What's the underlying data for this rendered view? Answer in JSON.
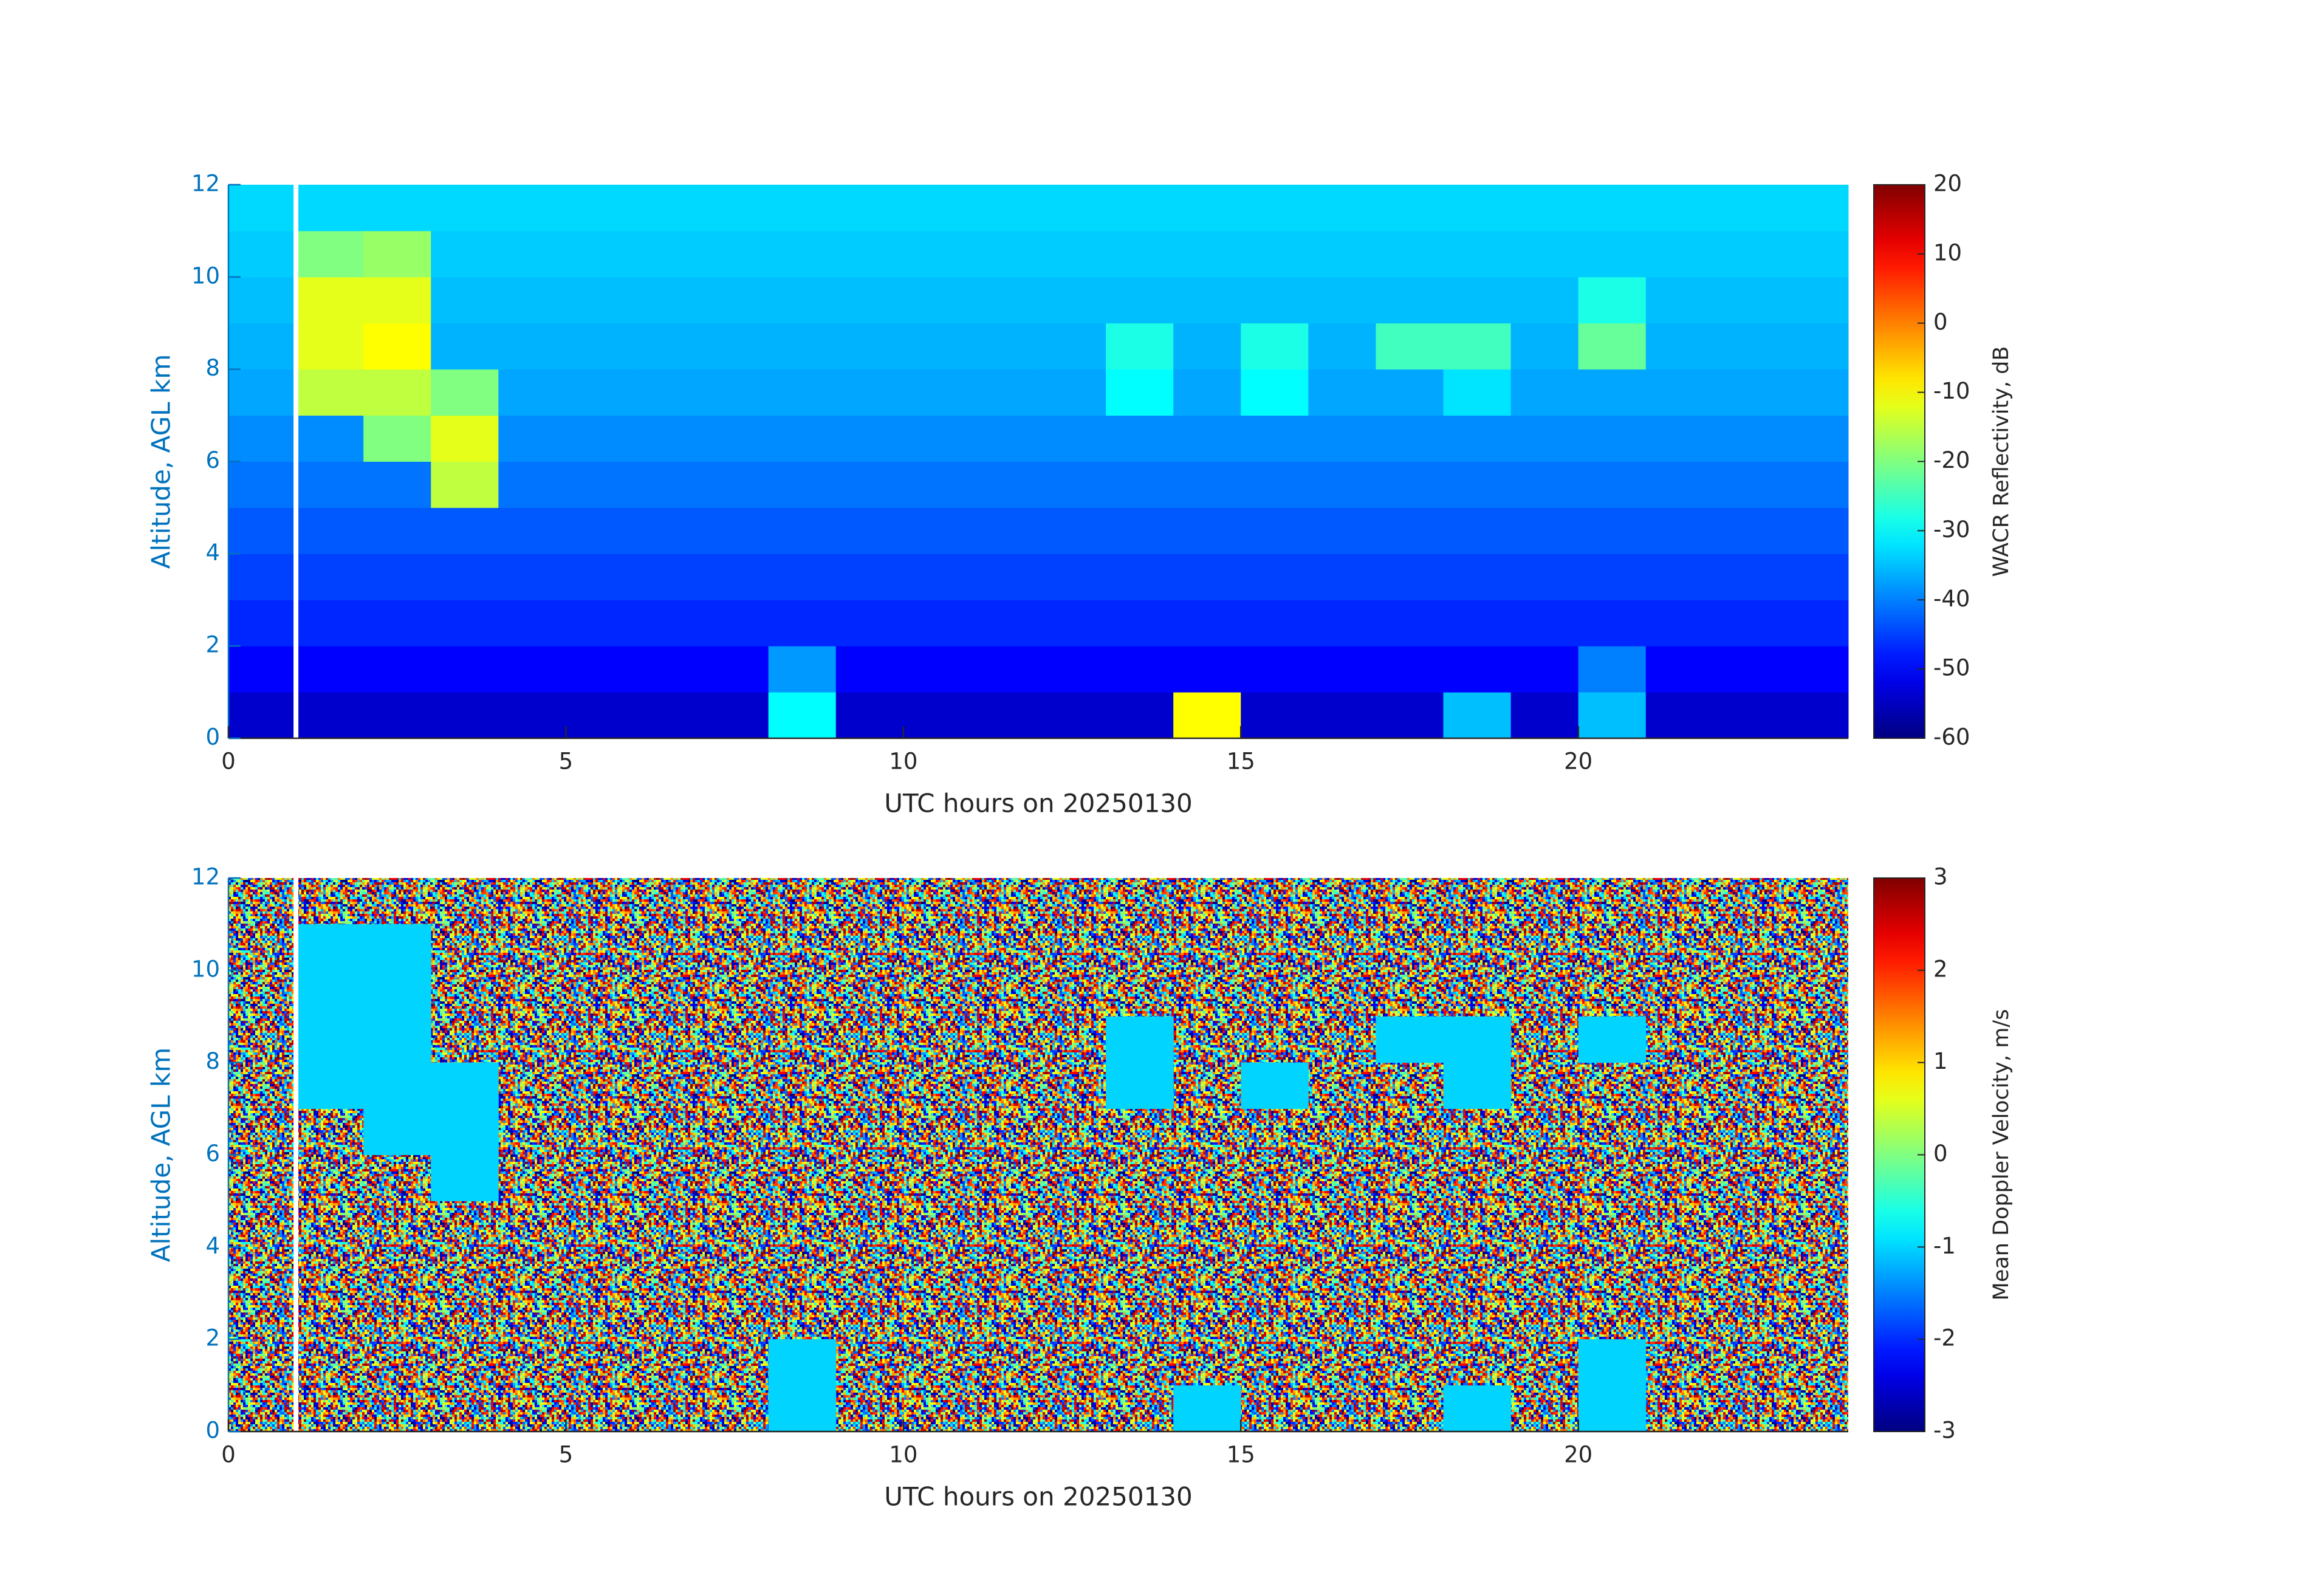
{
  "chart_data": [
    {
      "type": "heatmap",
      "xlabel": "UTC hours on 20250130",
      "ylabel": "Altitude, AGL km",
      "xlim": [
        0,
        24
      ],
      "xticks": [
        0,
        5,
        10,
        15,
        20
      ],
      "ylim": [
        0,
        12
      ],
      "yticks": [
        0,
        2,
        4,
        6,
        8,
        10,
        12
      ],
      "xbins": [
        0,
        1,
        2,
        3,
        4,
        5,
        6,
        7,
        8,
        9,
        10,
        11,
        12,
        13,
        14,
        15,
        16,
        17,
        18,
        19,
        20,
        21,
        22,
        23,
        24
      ],
      "ybins": [
        0,
        1,
        2,
        3,
        4,
        5,
        6,
        7,
        8,
        9,
        10,
        11,
        12
      ],
      "colorbar_label": "WACR Reflectivity, dB",
      "clim": [
        -60,
        20
      ],
      "cticks": [
        -60,
        -50,
        -40,
        -30,
        -20,
        -10,
        0,
        10,
        20
      ],
      "colormap": "jet",
      "values": [
        [
          -54,
          -54,
          -54,
          -54,
          -54,
          -54,
          -54,
          -54,
          -30,
          -54,
          -54,
          -54,
          -54,
          -54,
          -10,
          -54,
          -54,
          -54,
          -35,
          -54,
          -35,
          -54,
          -54,
          -54
        ],
        [
          -50,
          -50,
          -50,
          -50,
          -50,
          -50,
          -50,
          -50,
          -38,
          -50,
          -50,
          -50,
          -50,
          -50,
          -50,
          -50,
          -50,
          -50,
          -50,
          -50,
          -40,
          -50,
          -50,
          -50
        ],
        [
          -47,
          -47,
          -47,
          -47,
          -47,
          -47,
          -47,
          -47,
          -47,
          -47,
          -47,
          -47,
          -47,
          -47,
          -47,
          -47,
          -47,
          -47,
          -47,
          -47,
          -47,
          -47,
          -47,
          -47
        ],
        [
          -45,
          -45,
          -45,
          -45,
          -45,
          -45,
          -45,
          -45,
          -45,
          -45,
          -45,
          -45,
          -45,
          -45,
          -45,
          -45,
          -45,
          -45,
          -45,
          -45,
          -45,
          -45,
          -45,
          -45
        ],
        [
          -43,
          -43,
          -43,
          -43,
          -43,
          -43,
          -43,
          -43,
          -43,
          -43,
          -43,
          -43,
          -43,
          -43,
          -43,
          -43,
          -43,
          -43,
          -43,
          -43,
          -43,
          -43,
          -43,
          -43
        ],
        [
          -41,
          -41,
          -41,
          -15,
          -41,
          -41,
          -41,
          -41,
          -41,
          -41,
          -41,
          -41,
          -41,
          -41,
          -41,
          -41,
          -41,
          -41,
          -41,
          -41,
          -41,
          -41,
          -41,
          -41
        ],
        [
          -39,
          -39,
          -20,
          -12,
          -39,
          -39,
          -39,
          -39,
          -39,
          -39,
          -39,
          -39,
          -39,
          -39,
          -39,
          -39,
          -39,
          -39,
          -39,
          -39,
          -39,
          -39,
          -39,
          -39
        ],
        [
          -37,
          -15,
          -15,
          -20,
          -37,
          -37,
          -37,
          -37,
          -37,
          -37,
          -37,
          -37,
          -37,
          -30,
          -37,
          -30,
          -37,
          -37,
          -32,
          -37,
          -37,
          -37,
          -37,
          -37
        ],
        [
          -36,
          -12,
          -10,
          -36,
          -36,
          -36,
          -36,
          -36,
          -36,
          -36,
          -36,
          -36,
          -36,
          -28,
          -36,
          -28,
          -36,
          -25,
          -25,
          -36,
          -22,
          -36,
          -36,
          -36
        ],
        [
          -35,
          -12,
          -12,
          -35,
          -35,
          -35,
          -35,
          -35,
          -35,
          -35,
          -35,
          -35,
          -35,
          -35,
          -35,
          -35,
          -35,
          -35,
          -35,
          -35,
          -28,
          -35,
          -35,
          -35
        ],
        [
          -34,
          -20,
          -18,
          -34,
          -34,
          -34,
          -34,
          -34,
          -34,
          -34,
          -34,
          -34,
          -34,
          -34,
          -34,
          -34,
          -34,
          -34,
          -34,
          -34,
          -34,
          -34,
          -34,
          -34
        ],
        [
          -33,
          -33,
          -33,
          -33,
          -33,
          -33,
          -33,
          -33,
          -33,
          -33,
          -33,
          -33,
          -33,
          -33,
          -33,
          -33,
          -33,
          -33,
          -33,
          -33,
          -33,
          -33,
          -33,
          -33
        ]
      ]
    },
    {
      "type": "heatmap",
      "xlabel": "UTC hours on 20250130",
      "ylabel": "Altitude, AGL km",
      "xlim": [
        0,
        24
      ],
      "xticks": [
        0,
        5,
        10,
        15,
        20
      ],
      "ylim": [
        0,
        12
      ],
      "yticks": [
        0,
        2,
        4,
        6,
        8,
        10,
        12
      ],
      "xbins": [
        0,
        1,
        2,
        3,
        4,
        5,
        6,
        7,
        8,
        9,
        10,
        11,
        12,
        13,
        14,
        15,
        16,
        17,
        18,
        19,
        20,
        21,
        22,
        23,
        24
      ],
      "ybins": [
        0,
        1,
        2,
        3,
        4,
        5,
        6,
        7,
        8,
        9,
        10,
        11,
        12
      ],
      "colorbar_label": "Mean Doppler Velocity, m/s",
      "clim": [
        -3,
        3
      ],
      "cticks": [
        -3,
        -2,
        -1,
        0,
        1,
        2,
        3
      ],
      "colormap": "jet",
      "values": [
        [
          null,
          null,
          null,
          null,
          null,
          null,
          null,
          null,
          -1,
          null,
          null,
          null,
          null,
          null,
          -1,
          null,
          null,
          null,
          -1,
          null,
          -1,
          null,
          null,
          null
        ],
        [
          null,
          null,
          null,
          null,
          null,
          null,
          null,
          null,
          -1,
          null,
          null,
          null,
          null,
          null,
          null,
          null,
          null,
          null,
          null,
          null,
          -1,
          null,
          null,
          null
        ],
        [
          null,
          null,
          null,
          null,
          null,
          null,
          null,
          null,
          null,
          null,
          null,
          null,
          null,
          null,
          null,
          null,
          null,
          null,
          null,
          null,
          null,
          null,
          null,
          null
        ],
        [
          null,
          null,
          null,
          null,
          null,
          null,
          null,
          null,
          null,
          null,
          null,
          null,
          null,
          null,
          null,
          null,
          null,
          null,
          null,
          null,
          null,
          null,
          null,
          null
        ],
        [
          null,
          null,
          null,
          null,
          null,
          null,
          null,
          null,
          null,
          null,
          null,
          null,
          null,
          null,
          null,
          null,
          null,
          null,
          null,
          null,
          null,
          null,
          null,
          null
        ],
        [
          null,
          null,
          null,
          -1,
          null,
          null,
          null,
          null,
          null,
          null,
          null,
          null,
          null,
          null,
          null,
          null,
          null,
          null,
          null,
          null,
          null,
          null,
          null,
          null
        ],
        [
          null,
          null,
          -1,
          -1,
          null,
          null,
          null,
          null,
          null,
          null,
          null,
          null,
          null,
          null,
          null,
          null,
          null,
          null,
          null,
          null,
          null,
          null,
          null,
          null
        ],
        [
          null,
          -1,
          -1,
          -1,
          null,
          null,
          null,
          null,
          null,
          null,
          null,
          null,
          null,
          -1,
          null,
          -1,
          null,
          null,
          -1,
          null,
          null,
          null,
          null,
          null
        ],
        [
          null,
          -1,
          -1,
          null,
          null,
          null,
          null,
          null,
          null,
          null,
          null,
          null,
          null,
          -1,
          null,
          null,
          null,
          -1,
          -1,
          null,
          -1,
          null,
          null,
          null
        ],
        [
          null,
          -1,
          -1,
          null,
          null,
          null,
          null,
          null,
          null,
          null,
          null,
          null,
          null,
          null,
          null,
          null,
          null,
          null,
          null,
          null,
          null,
          null,
          null,
          null
        ],
        [
          null,
          -1,
          -1,
          null,
          null,
          null,
          null,
          null,
          null,
          null,
          null,
          null,
          null,
          null,
          null,
          null,
          null,
          null,
          null,
          null,
          null,
          null,
          null,
          null
        ],
        [
          null,
          null,
          null,
          null,
          null,
          null,
          null,
          null,
          null,
          null,
          null,
          null,
          null,
          null,
          null,
          null,
          null,
          null,
          null,
          null,
          null,
          null,
          null,
          null
        ]
      ]
    }
  ]
}
